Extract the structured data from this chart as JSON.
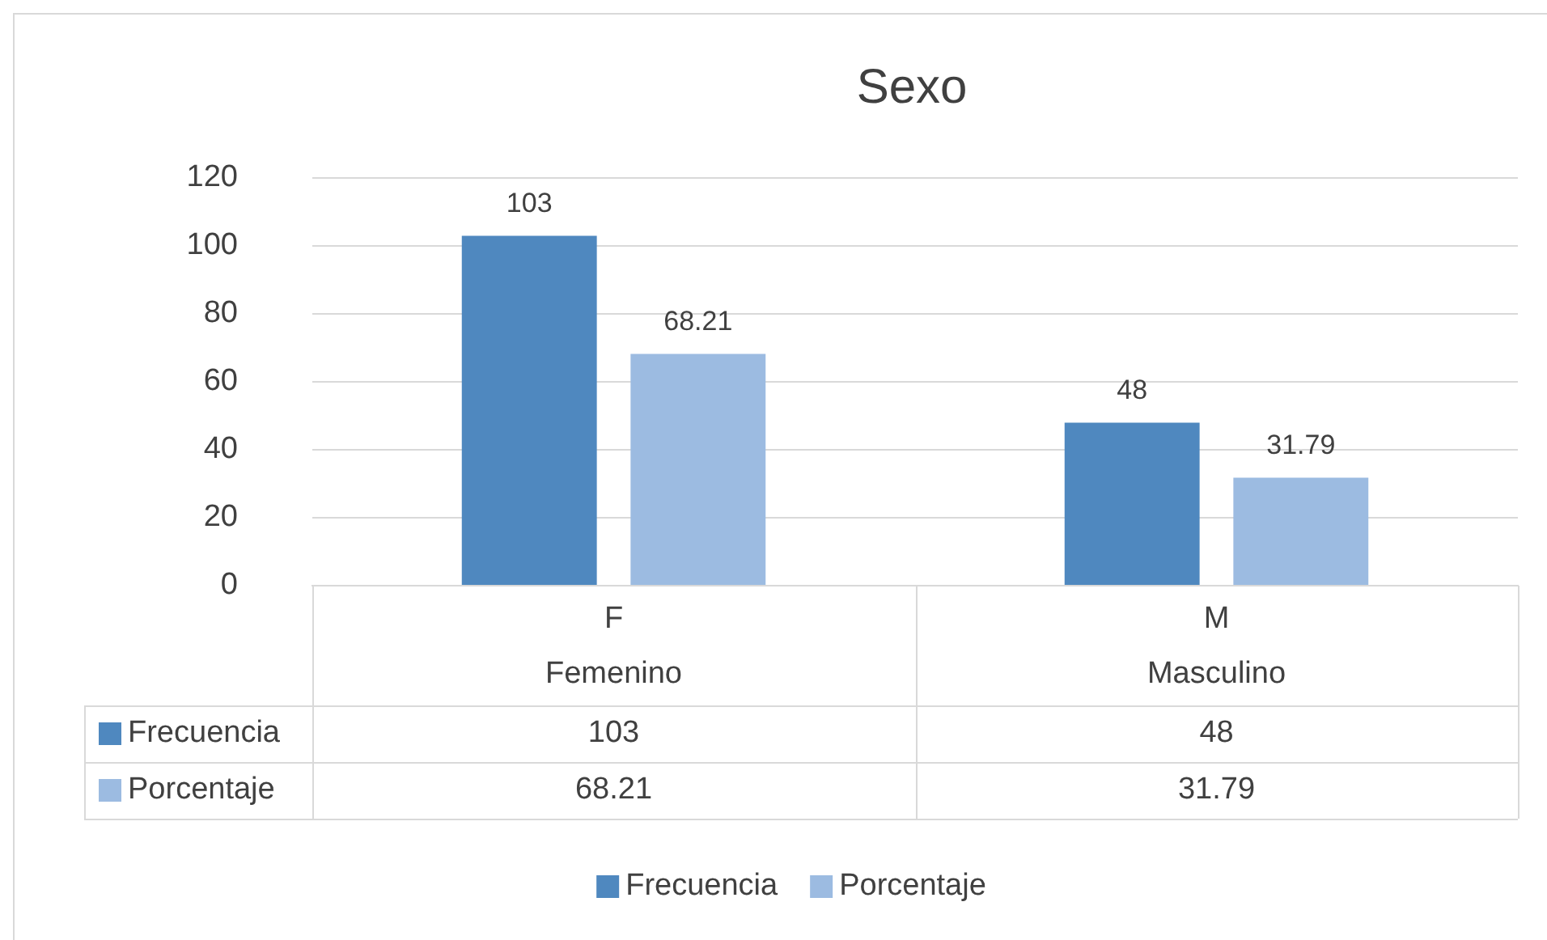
{
  "chart_data": {
    "type": "bar",
    "title": "Sexo",
    "categories": [
      "F\nFemenino",
      "M\nMasculino"
    ],
    "series": [
      {
        "name": "Frecuencia",
        "color": "#4f88bf",
        "values": [
          103,
          48
        ]
      },
      {
        "name": "Porcentaje",
        "color": "#9cbbe1",
        "values": [
          68.21,
          31.79
        ]
      }
    ],
    "annotations": [
      "103",
      "48",
      "68.21",
      "31.79"
    ],
    "ylim": [
      0,
      120
    ],
    "yticks": [
      0,
      20,
      40,
      60,
      80,
      100,
      120
    ],
    "grid": "y",
    "legend": "bottom",
    "data_labels": true
  }
}
